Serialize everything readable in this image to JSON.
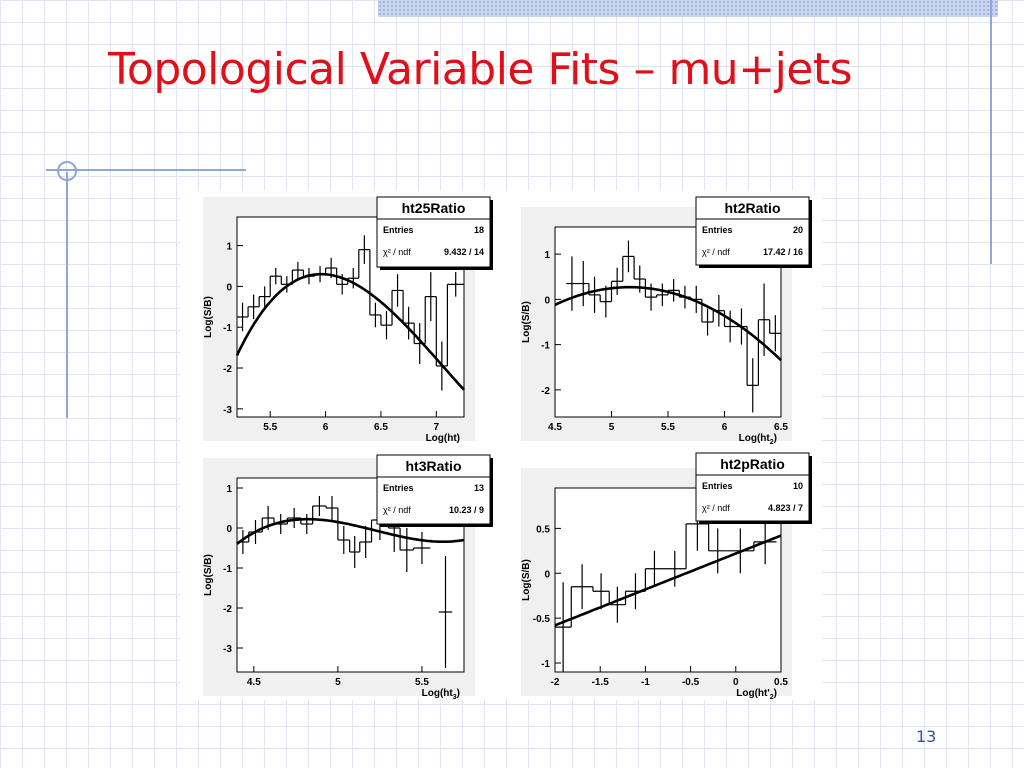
{
  "slide": {
    "title": "Topological Variable Fits – mu+jets",
    "page_number": "13"
  },
  "colors": {
    "title": "#e0101a",
    "page_number": "#3a4fa0",
    "grid": "#dfe3f2",
    "accent_lines": "#8ea6d8",
    "plot_frame": "#f0f0f0",
    "plot_ink": "#000000"
  },
  "chart_data": [
    {
      "type": "scatter",
      "title": "ht25Ratio",
      "xlabel": "Log(ht)",
      "ylabel": "Log(S/B)",
      "xlim": [
        5.2,
        7.25
      ],
      "ylim": [
        -3.2,
        1.7
      ],
      "xticks": [
        5.5,
        6,
        6.5,
        7
      ],
      "yticks": [
        1,
        0,
        -1,
        -2,
        -3
      ],
      "stats": {
        "entries_label": "Entries",
        "entries": "18",
        "chi2_label": "χ² / ndf",
        "chi2": "9.432 / 14"
      },
      "series": [
        {
          "kind": "histogram",
          "bins": [
            {
              "x0": 5.2,
              "x1": 5.3,
              "y": -0.75,
              "err": 0.35
            },
            {
              "x0": 5.3,
              "x1": 5.4,
              "y": -0.5,
              "err": 0.3
            },
            {
              "x0": 5.4,
              "x1": 5.5,
              "y": -0.25,
              "err": 0.25
            },
            {
              "x0": 5.5,
              "x1": 5.6,
              "y": 0.25,
              "err": 0.2
            },
            {
              "x0": 5.6,
              "x1": 5.7,
              "y": 0.05,
              "err": 0.2
            },
            {
              "x0": 5.7,
              "x1": 5.8,
              "y": 0.4,
              "err": 0.2
            },
            {
              "x0": 5.8,
              "x1": 5.9,
              "y": 0.25,
              "err": 0.2
            },
            {
              "x0": 5.9,
              "x1": 6.0,
              "y": 0.3,
              "err": 0.2
            },
            {
              "x0": 6.0,
              "x1": 6.1,
              "y": 0.45,
              "err": 0.25
            },
            {
              "x0": 6.1,
              "x1": 6.2,
              "y": 0.05,
              "err": 0.25
            },
            {
              "x0": 6.2,
              "x1": 6.3,
              "y": 0.2,
              "err": 0.25
            },
            {
              "x0": 6.3,
              "x1": 6.4,
              "y": 0.9,
              "err": 0.35
            },
            {
              "x0": 6.4,
              "x1": 6.5,
              "y": -0.7,
              "err": 0.3
            },
            {
              "x0": 6.5,
              "x1": 6.6,
              "y": -0.95,
              "err": 0.35
            },
            {
              "x0": 6.6,
              "x1": 6.7,
              "y": -0.1,
              "err": 0.4
            },
            {
              "x0": 6.7,
              "x1": 6.8,
              "y": -0.9,
              "err": 0.4
            },
            {
              "x0": 6.8,
              "x1": 6.9,
              "y": -1.4,
              "err": 0.5
            },
            {
              "x0": 6.9,
              "x1": 7.0,
              "y": -0.25,
              "err": 0.6
            },
            {
              "x0": 7.0,
              "x1": 7.1,
              "y": -1.95,
              "err": 0.6
            },
            {
              "x0": 7.1,
              "x1": 7.25,
              "y": 0.05,
              "err": 0.3
            }
          ]
        },
        {
          "kind": "fit",
          "poly": [
            5.96,
            0.3,
            -2.8,
            0.85
          ]
        }
      ]
    },
    {
      "type": "scatter",
      "title": "ht2Ratio",
      "xlabel": "Log(ht",
      "xlabel_sub": "2",
      "xlabel_end": ")",
      "ylabel": "Log(S/B)",
      "xlim": [
        4.5,
        6.5
      ],
      "ylim": [
        -2.6,
        1.6
      ],
      "xticks": [
        4.5,
        5,
        5.5,
        6,
        6.5
      ],
      "yticks": [
        1,
        0,
        -1,
        -2
      ],
      "stats": {
        "entries_label": "Entries",
        "entries": "20",
        "chi2_label": "χ² / ndf",
        "chi2": "17.42 / 16"
      },
      "series": [
        {
          "kind": "histogram",
          "bins": [
            {
              "x0": 4.6,
              "x1": 4.7,
              "y": 0.35,
              "err": 0.6
            },
            {
              "x0": 4.7,
              "x1": 4.8,
              "y": 0.35,
              "err": 0.5
            },
            {
              "x0": 4.8,
              "x1": 4.9,
              "y": 0.1,
              "err": 0.4
            },
            {
              "x0": 4.9,
              "x1": 5.0,
              "y": -0.05,
              "err": 0.35
            },
            {
              "x0": 5.0,
              "x1": 5.1,
              "y": 0.4,
              "err": 0.3
            },
            {
              "x0": 5.1,
              "x1": 5.2,
              "y": 0.95,
              "err": 0.35
            },
            {
              "x0": 5.2,
              "x1": 5.3,
              "y": 0.45,
              "err": 0.3
            },
            {
              "x0": 5.3,
              "x1": 5.4,
              "y": 0.05,
              "err": 0.3
            },
            {
              "x0": 5.4,
              "x1": 5.5,
              "y": 0.1,
              "err": 0.25
            },
            {
              "x0": 5.5,
              "x1": 5.6,
              "y": 0.2,
              "err": 0.25
            },
            {
              "x0": 5.6,
              "x1": 5.7,
              "y": 0.05,
              "err": 0.25
            },
            {
              "x0": 5.7,
              "x1": 5.8,
              "y": 0.0,
              "err": 0.3
            },
            {
              "x0": 5.8,
              "x1": 5.9,
              "y": -0.5,
              "err": 0.3
            },
            {
              "x0": 5.9,
              "x1": 6.0,
              "y": -0.25,
              "err": 0.35
            },
            {
              "x0": 6.0,
              "x1": 6.1,
              "y": -0.6,
              "err": 0.35
            },
            {
              "x0": 6.1,
              "x1": 6.2,
              "y": -0.6,
              "err": 0.4
            },
            {
              "x0": 6.2,
              "x1": 6.3,
              "y": -1.9,
              "err": 0.6
            },
            {
              "x0": 6.3,
              "x1": 6.4,
              "y": -0.45,
              "err": 0.8
            },
            {
              "x0": 6.4,
              "x1": 6.5,
              "y": -0.75,
              "err": 0.4
            }
          ]
        },
        {
          "kind": "fit",
          "poly": [
            5.16,
            0.27,
            -0.9,
            0.0
          ]
        }
      ]
    },
    {
      "type": "scatter",
      "title": "ht3Ratio",
      "xlabel": "Log(ht",
      "xlabel_sub": "3",
      "xlabel_end": ")",
      "ylabel": "Log(S/B)",
      "xlim": [
        4.4,
        5.75
      ],
      "ylim": [
        -3.6,
        1.25
      ],
      "xticks": [
        4.5,
        5,
        5.5
      ],
      "yticks": [
        1,
        0,
        -1,
        -2,
        -3
      ],
      "stats": {
        "entries_label": "Entries",
        "entries": "13",
        "chi2_label": "χ² / ndf",
        "chi2": "10.23 / 9"
      },
      "series": [
        {
          "kind": "histogram",
          "bins": [
            {
              "x0": 4.4,
              "x1": 4.47,
              "y": -0.35,
              "err": 0.3
            },
            {
              "x0": 4.47,
              "x1": 4.55,
              "y": -0.1,
              "err": 0.3
            },
            {
              "x0": 4.55,
              "x1": 4.62,
              "y": 0.25,
              "err": 0.3
            },
            {
              "x0": 4.62,
              "x1": 4.7,
              "y": 0.1,
              "err": 0.25
            },
            {
              "x0": 4.7,
              "x1": 4.78,
              "y": 0.25,
              "err": 0.25
            },
            {
              "x0": 4.78,
              "x1": 4.85,
              "y": 0.1,
              "err": 0.25
            },
            {
              "x0": 4.85,
              "x1": 4.93,
              "y": 0.55,
              "err": 0.25
            },
            {
              "x0": 4.93,
              "x1": 5.0,
              "y": 0.5,
              "err": 0.3
            },
            {
              "x0": 5.0,
              "x1": 5.07,
              "y": -0.3,
              "err": 0.35
            },
            {
              "x0": 5.07,
              "x1": 5.13,
              "y": -0.6,
              "err": 0.4
            },
            {
              "x0": 5.13,
              "x1": 5.2,
              "y": -0.35,
              "err": 0.4
            },
            {
              "x0": 5.2,
              "x1": 5.3,
              "y": 0.2,
              "err": 0.5
            },
            {
              "x0": 5.3,
              "x1": 5.37,
              "y": 0.0,
              "err": 0.6
            },
            {
              "x0": 5.37,
              "x1": 5.45,
              "y": -0.55,
              "err": 0.55
            },
            {
              "x0": 5.45,
              "x1": 5.55,
              "y": -0.5,
              "err": 0.4
            },
            {
              "x0": 5.6,
              "x1": 5.68,
              "y": -2.1,
              "err": 1.4
            }
          ]
        },
        {
          "kind": "fit",
          "poly": [
            4.82,
            0.22,
            -2.6,
            2.15
          ]
        }
      ]
    },
    {
      "type": "scatter",
      "title": "ht2pRatio",
      "xlabel": "Log(ht'",
      "xlabel_sub": "2",
      "xlabel_end": ")",
      "ylabel": "Log(S/B)",
      "xlim": [
        -2,
        0.5
      ],
      "ylim": [
        -1.1,
        0.95
      ],
      "xticks": [
        -2,
        -1.5,
        -1,
        -0.5,
        0,
        0.5
      ],
      "yticks": [
        0.5,
        0,
        -0.5,
        -1
      ],
      "stats": {
        "entries_label": "Entries",
        "entries": "10",
        "chi2_label": "χ² / ndf",
        "chi2": "4.823 / 7"
      },
      "series": [
        {
          "kind": "histogram",
          "bins": [
            {
              "x0": -2.0,
              "x1": -1.82,
              "y": -0.6,
              "err": 0.5
            },
            {
              "x0": -1.82,
              "x1": -1.58,
              "y": -0.15,
              "err": 0.25
            },
            {
              "x0": -1.58,
              "x1": -1.4,
              "y": -0.2,
              "err": 0.2
            },
            {
              "x0": -1.4,
              "x1": -1.22,
              "y": -0.35,
              "err": 0.2
            },
            {
              "x0": -1.22,
              "x1": -1.0,
              "y": -0.2,
              "err": 0.2
            },
            {
              "x0": -1.0,
              "x1": -0.8,
              "y": 0.05,
              "err": 0.2
            },
            {
              "x0": -0.8,
              "x1": -0.55,
              "y": 0.05,
              "err": 0.2
            },
            {
              "x0": -0.55,
              "x1": -0.3,
              "y": 0.55,
              "err": 0.3
            },
            {
              "x0": -0.3,
              "x1": -0.1,
              "y": 0.25,
              "err": 0.25
            },
            {
              "x0": -0.1,
              "x1": 0.2,
              "y": 0.25,
              "err": 0.25
            },
            {
              "x0": 0.2,
              "x1": 0.45,
              "y": 0.35,
              "err": 0.25
            }
          ]
        },
        {
          "kind": "fit",
          "linear": [
            -0.58,
            0.42
          ]
        }
      ]
    }
  ]
}
